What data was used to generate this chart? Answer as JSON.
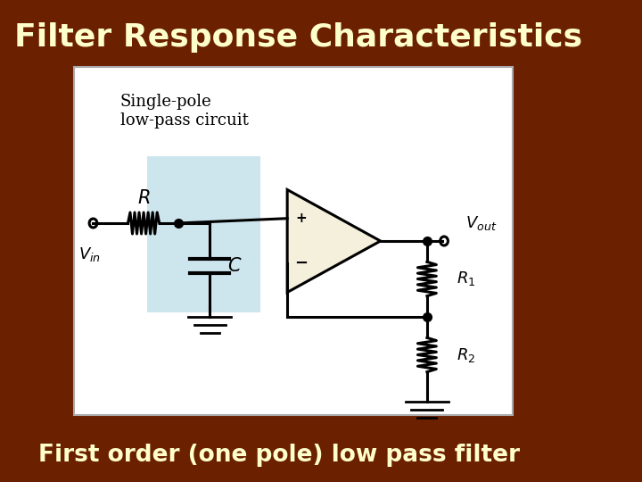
{
  "title": "Filter Response Characteristics",
  "subtitle": "First order (one pole) low pass filter",
  "title_color": "#FFFFCC",
  "subtitle_color": "#FFFFCC",
  "bg_color": "#6B2000",
  "panel_bg": "#FFFFFF",
  "panel_border": "#CCCCCC",
  "circuit_label": "Single-pole\nlow-pass circuit",
  "title_fontsize": 26,
  "subtitle_fontsize": 19,
  "highlight_color": "#B8DCE8"
}
